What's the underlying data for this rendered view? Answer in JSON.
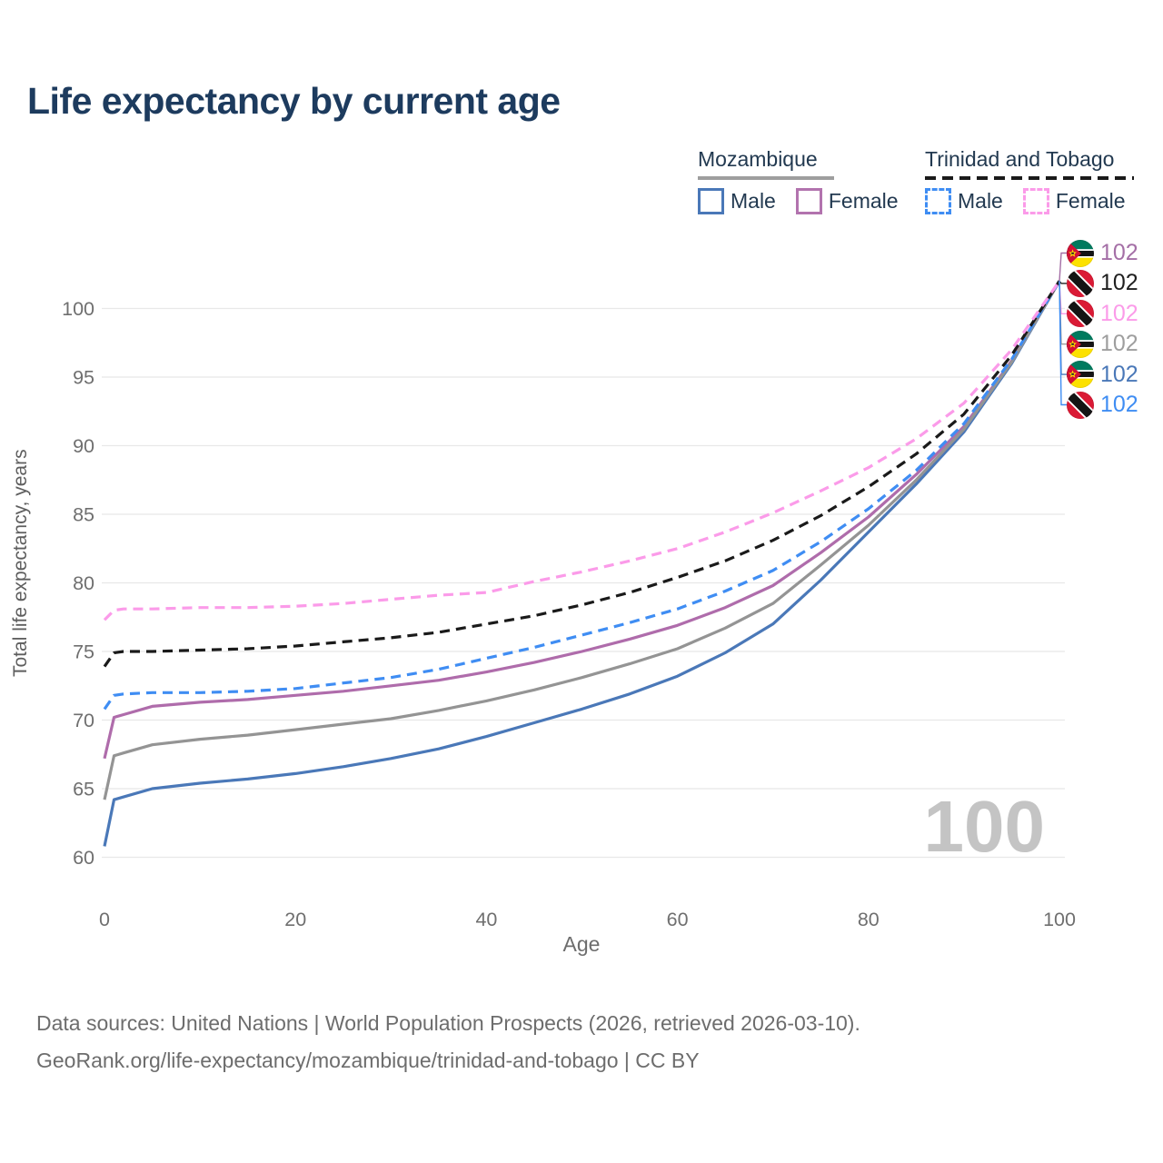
{
  "title": "Life expectancy by current age",
  "legend": {
    "groups": [
      {
        "label": "Mozambique",
        "line_style": "solid",
        "line_color": "#9e9e9e",
        "items": [
          {
            "label": "Male",
            "color": "#4a78b8",
            "dashed": false
          },
          {
            "label": "Female",
            "color": "#b273ae",
            "dashed": false
          }
        ]
      },
      {
        "label": "Trinidad and Tobago",
        "line_style": "dashed",
        "line_color": "#1a1a1a",
        "items": [
          {
            "label": "Male",
            "color": "#3f8df3",
            "dashed": true
          },
          {
            "label": "Female",
            "color": "#fb9be9",
            "dashed": true
          }
        ]
      }
    ]
  },
  "chart_data": {
    "type": "line",
    "title": "Life expectancy by current age",
    "xlabel": "Age",
    "ylabel": "Total life expectancy, years",
    "xlim": [
      0,
      100
    ],
    "ylim": [
      60,
      103
    ],
    "xticks": [
      0,
      20,
      40,
      60,
      80,
      100
    ],
    "yticks": [
      60,
      65,
      70,
      75,
      80,
      85,
      90,
      95,
      100
    ],
    "grid": "horizontal",
    "legend_position": "top-right",
    "watermark": "100",
    "ages": [
      0,
      1,
      2,
      5,
      10,
      15,
      20,
      25,
      30,
      35,
      40,
      45,
      50,
      55,
      60,
      65,
      70,
      75,
      80,
      85,
      90,
      95,
      100
    ],
    "series": [
      {
        "name": "Mozambique Male",
        "country": "Mozambique",
        "gender": "Male",
        "color": "#4a78b8",
        "dashed": false,
        "values": [
          60.8,
          64.2,
          64.4,
          65.0,
          65.4,
          65.7,
          66.1,
          66.6,
          67.2,
          67.9,
          68.8,
          69.8,
          70.8,
          71.9,
          73.2,
          74.9,
          77.0,
          80.2,
          83.7,
          87.2,
          91.0,
          96.0,
          102
        ]
      },
      {
        "name": "Mozambique Female",
        "country": "Mozambique",
        "gender": "Female",
        "color": "#af6cab",
        "dashed": false,
        "values": [
          67.2,
          70.2,
          70.4,
          71.0,
          71.3,
          71.5,
          71.8,
          72.1,
          72.5,
          72.9,
          73.5,
          74.2,
          75.0,
          75.9,
          76.9,
          78.2,
          79.8,
          82.2,
          84.8,
          87.9,
          91.4,
          96.2,
          102
        ]
      },
      {
        "name": "Mozambique Both sexes",
        "country": "Mozambique",
        "gender": "Both",
        "color": "#949494",
        "dashed": false,
        "values": [
          64.2,
          67.4,
          67.6,
          68.2,
          68.6,
          68.9,
          69.3,
          69.7,
          70.1,
          70.7,
          71.4,
          72.2,
          73.1,
          74.1,
          75.2,
          76.7,
          78.5,
          81.3,
          84.2,
          87.5,
          91.2,
          96.1,
          102
        ]
      },
      {
        "name": "Trinidad and Tobago Male",
        "country": "Trinidad and Tobago",
        "gender": "Male",
        "color": "#3f8df3",
        "dashed": true,
        "values": [
          70.8,
          71.8,
          71.9,
          72.0,
          72.0,
          72.1,
          72.3,
          72.7,
          73.1,
          73.7,
          74.5,
          75.3,
          76.2,
          77.1,
          78.1,
          79.4,
          80.9,
          83.0,
          85.4,
          88.2,
          91.6,
          96.3,
          102
        ]
      },
      {
        "name": "Trinidad and Tobago Both sexes",
        "country": "Trinidad and Tobago",
        "gender": "Both",
        "color": "#1a1a1a",
        "dashed": true,
        "values": [
          73.9,
          74.9,
          75.0,
          75.0,
          75.1,
          75.2,
          75.4,
          75.7,
          76.0,
          76.4,
          77.0,
          77.6,
          78.4,
          79.3,
          80.4,
          81.6,
          83.1,
          84.9,
          87.0,
          89.4,
          92.3,
          96.6,
          102
        ]
      },
      {
        "name": "Trinidad and Tobago Female",
        "country": "Trinidad and Tobago",
        "gender": "Female",
        "color": "#fb9be9",
        "dashed": true,
        "values": [
          77.3,
          78.0,
          78.1,
          78.1,
          78.2,
          78.2,
          78.3,
          78.5,
          78.8,
          79.1,
          79.3,
          80.1,
          80.8,
          81.6,
          82.5,
          83.7,
          85.1,
          86.7,
          88.4,
          90.5,
          93.1,
          97.0,
          102
        ]
      }
    ],
    "end_labels": [
      {
        "series": "Mozambique Female",
        "flag": "mz",
        "value": "102",
        "color": "#a46fa6"
      },
      {
        "series": "Trinidad and Tobago Both sexes",
        "flag": "tt",
        "value": "102",
        "color": "#1f1f1f"
      },
      {
        "series": "Trinidad and Tobago Female",
        "flag": "tt",
        "value": "102",
        "color": "#fb9be9"
      },
      {
        "series": "Mozambique Both sexes",
        "flag": "mz",
        "value": "102",
        "color": "#9e9e9e"
      },
      {
        "series": "Mozambique Male",
        "flag": "mz",
        "value": "102",
        "color": "#4a78b8"
      },
      {
        "series": "Trinidad and Tobago Male",
        "flag": "tt",
        "value": "102",
        "color": "#3f8df3"
      }
    ]
  },
  "footer": {
    "line1": "Data sources: United Nations | World Population Prospects (2026, retrieved 2026-03-10).",
    "line2": "GeoRank.org/life-expectancy/mozambique/trinidad-and-tobago | CC BY"
  },
  "colors": {
    "title": "#1d3b5e",
    "grid": "#e8e8e8",
    "tick_label": "#6f6f6f",
    "watermark": "#c4c4c4"
  }
}
